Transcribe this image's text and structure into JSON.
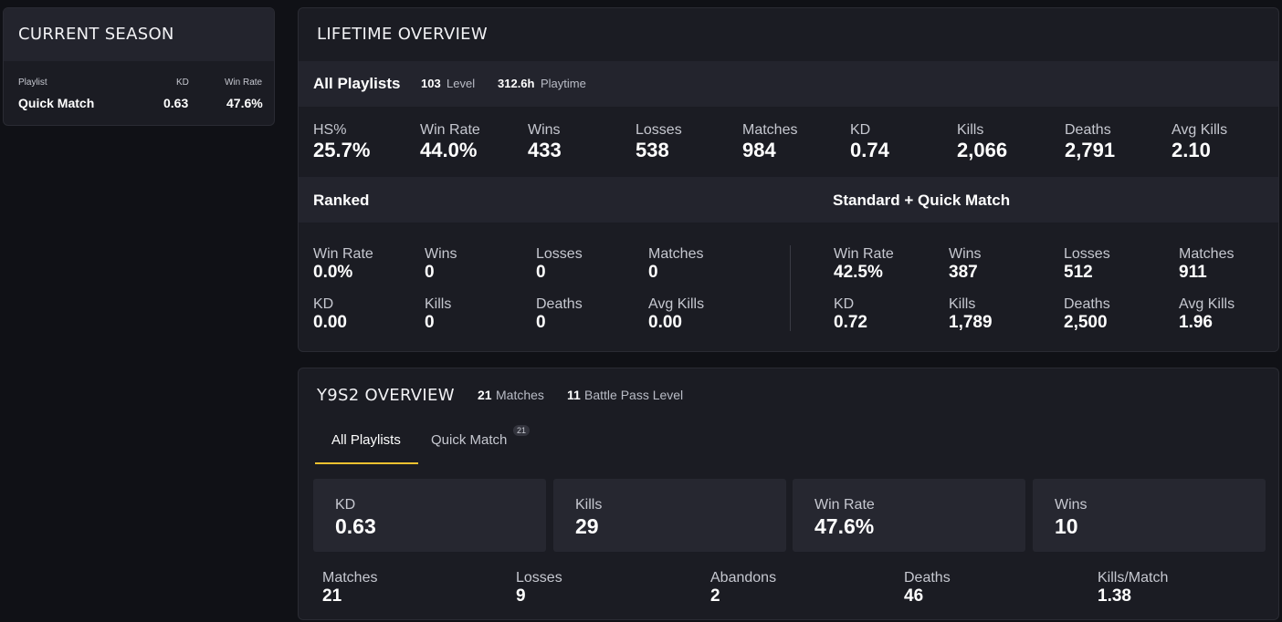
{
  "current_season": {
    "title": "CURRENT SEASON",
    "columns": {
      "playlist": "Playlist",
      "kd": "KD",
      "win_rate": "Win Rate"
    },
    "row": {
      "playlist": "Quick Match",
      "kd": "0.63",
      "win_rate": "47.6%"
    }
  },
  "lifetime": {
    "title": "LIFETIME OVERVIEW",
    "all_playlists": {
      "label": "All Playlists",
      "level_value": "103",
      "level_label": "Level",
      "playtime_value": "312.6h",
      "playtime_label": "Playtime",
      "stats": [
        {
          "label": "HS%",
          "value": "25.7%"
        },
        {
          "label": "Win Rate",
          "value": "44.0%"
        },
        {
          "label": "Wins",
          "value": "433"
        },
        {
          "label": "Losses",
          "value": "538"
        },
        {
          "label": "Matches",
          "value": "984"
        },
        {
          "label": "KD",
          "value": "0.74"
        },
        {
          "label": "Kills",
          "value": "2,066"
        },
        {
          "label": "Deaths",
          "value": "2,791"
        },
        {
          "label": "Avg Kills",
          "value": "2.10"
        }
      ]
    },
    "ranked": {
      "label": "Ranked",
      "stats": [
        {
          "label": "Win Rate",
          "value": "0.0%"
        },
        {
          "label": "Wins",
          "value": "0"
        },
        {
          "label": "Losses",
          "value": "0"
        },
        {
          "label": "Matches",
          "value": "0"
        },
        {
          "label": "KD",
          "value": "0.00"
        },
        {
          "label": "Kills",
          "value": "0"
        },
        {
          "label": "Deaths",
          "value": "0"
        },
        {
          "label": "Avg Kills",
          "value": "0.00"
        }
      ]
    },
    "standard": {
      "label": "Standard + Quick Match",
      "stats": [
        {
          "label": "Win Rate",
          "value": "42.5%"
        },
        {
          "label": "Wins",
          "value": "387"
        },
        {
          "label": "Losses",
          "value": "512"
        },
        {
          "label": "Matches",
          "value": "911"
        },
        {
          "label": "KD",
          "value": "0.72"
        },
        {
          "label": "Kills",
          "value": "1,789"
        },
        {
          "label": "Deaths",
          "value": "2,500"
        },
        {
          "label": "Avg Kills",
          "value": "1.96"
        }
      ]
    }
  },
  "season": {
    "title": "Y9S2 OVERVIEW",
    "matches_value": "21",
    "matches_label": "Matches",
    "bp_value": "11",
    "bp_label": "Battle Pass Level",
    "tabs": [
      {
        "label": "All Playlists"
      },
      {
        "label": "Quick Match",
        "badge": "21"
      }
    ],
    "cards": [
      {
        "label": "KD",
        "value": "0.63"
      },
      {
        "label": "Kills",
        "value": "29"
      },
      {
        "label": "Win Rate",
        "value": "47.6%"
      },
      {
        "label": "Wins",
        "value": "10"
      }
    ],
    "stats": [
      {
        "label": "Matches",
        "value": "21"
      },
      {
        "label": "Losses",
        "value": "9"
      },
      {
        "label": "Abandons",
        "value": "2"
      },
      {
        "label": "Deaths",
        "value": "46"
      },
      {
        "label": "Kills/Match",
        "value": "1.38"
      }
    ],
    "accent": "#f2c230"
  }
}
